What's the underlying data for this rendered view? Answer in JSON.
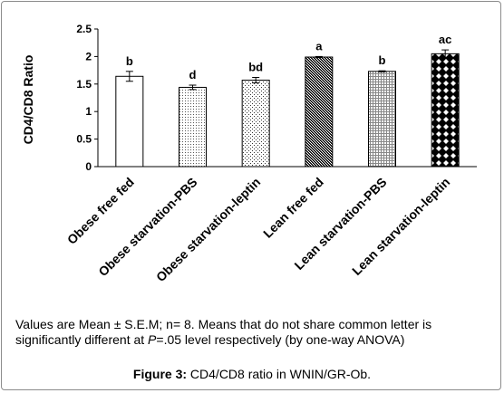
{
  "chart_data": {
    "type": "bar",
    "ylabel": "CD4/CD8 Ratio",
    "ylim": [
      0,
      2.5
    ],
    "yticks": [
      "0",
      "0.5",
      "1",
      "1.5",
      "2",
      "2.5"
    ],
    "categories": [
      "Obese free fed",
      "Obese starvation-PBS",
      "Obese starvation-leptin",
      "Lean free fed",
      "Lean starvation-PBS",
      "Lean starvation-leptin"
    ],
    "values": [
      1.64,
      1.44,
      1.57,
      1.99,
      1.73,
      2.05
    ],
    "errors": [
      0.09,
      0.04,
      0.05,
      0.01,
      0.01,
      0.07
    ],
    "labels": [
      "b",
      "d",
      "bd",
      "a",
      "b",
      "ac"
    ],
    "fills": [
      "white",
      "fine-dots",
      "sparse-dots",
      "crosshatch",
      "fine-grid",
      "checker-diamond"
    ],
    "grid": false,
    "legend": "none"
  },
  "note": {
    "line1": "Values are Mean ± S.E.M; n= 8. Means that do not share common letter is",
    "line2_before": "significantly different at ",
    "line2_p": "P",
    "line2_after": "=.05 level respectively (by one-way ANOVA)"
  },
  "caption": {
    "label": "Figure 3:",
    "text": " CD4/CD8 ratio in WNIN/GR-Ob."
  }
}
